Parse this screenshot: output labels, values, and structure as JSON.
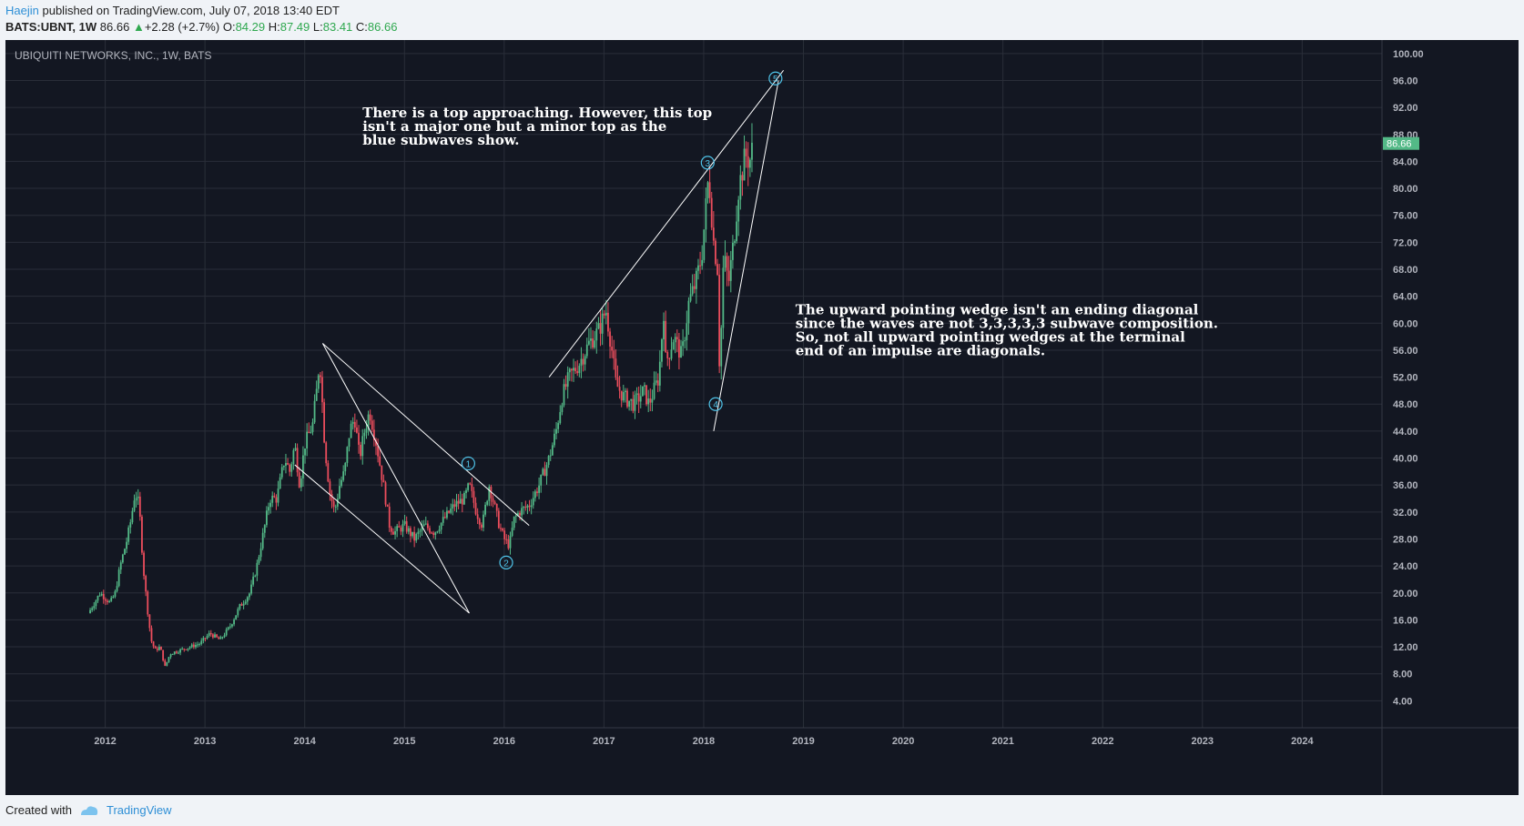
{
  "header": {
    "author": "Haejin",
    "published": "published on TradingView.com, July 07, 2018 13:40 EDT",
    "symbol": "BATS:UBNT, 1W",
    "last": "86.66",
    "change": "+2.28 (+2.7%)",
    "o_label": "O:",
    "o_value": "84.29",
    "h_label": "H:",
    "h_value": "87.49",
    "l_label": "L:",
    "l_value": "83.41",
    "c_label": "C:",
    "c_value": "86.66"
  },
  "footer": {
    "created": "Created with",
    "brand": "TradingView"
  },
  "chart_data": {
    "type": "candlestick",
    "title": "UBIQUITI NETWORKS, INC., 1W, BATS",
    "price_label": "86.66",
    "ylim": [
      0,
      102
    ],
    "yticks": [
      4,
      8,
      12,
      16,
      20,
      24,
      28,
      32,
      36,
      40,
      44,
      48,
      52,
      56,
      60,
      64,
      68,
      72,
      76,
      80,
      84,
      88,
      92,
      96,
      100
    ],
    "xlim": [
      2011.0,
      2024.8
    ],
    "xticks": [
      2012,
      2013,
      2014,
      2015,
      2016,
      2017,
      2018,
      2019,
      2020,
      2021,
      2022,
      2023,
      2024
    ],
    "colors": {
      "bg": "#131722",
      "up": "#53b987",
      "down": "#eb4d5c",
      "grid": "#2a2e39",
      "text": "#b2b5be",
      "wave": "#4fc3e8",
      "line": "#ffffff",
      "price_tag": "#53b987"
    },
    "price_path": [
      [
        2011.83,
        17
      ],
      [
        2011.95,
        20
      ],
      [
        2012.05,
        18.5
      ],
      [
        2012.1,
        20
      ],
      [
        2012.15,
        24
      ],
      [
        2012.22,
        28
      ],
      [
        2012.26,
        31
      ],
      [
        2012.3,
        35
      ],
      [
        2012.34,
        33
      ],
      [
        2012.38,
        24
      ],
      [
        2012.42,
        18
      ],
      [
        2012.46,
        13
      ],
      [
        2012.5,
        11.5
      ],
      [
        2012.55,
        12
      ],
      [
        2012.6,
        9
      ],
      [
        2012.65,
        11
      ],
      [
        2012.75,
        11.5
      ],
      [
        2012.85,
        12
      ],
      [
        2012.95,
        12.5
      ],
      [
        2013.05,
        14
      ],
      [
        2013.15,
        13
      ],
      [
        2013.25,
        15
      ],
      [
        2013.35,
        18
      ],
      [
        2013.45,
        20
      ],
      [
        2013.52,
        24
      ],
      [
        2013.6,
        30
      ],
      [
        2013.65,
        34
      ],
      [
        2013.72,
        34
      ],
      [
        2013.8,
        40
      ],
      [
        2013.85,
        38
      ],
      [
        2013.9,
        42
      ],
      [
        2013.95,
        36
      ],
      [
        2014.0,
        42
      ],
      [
        2014.08,
        45
      ],
      [
        2014.12,
        50
      ],
      [
        2014.15,
        55
      ],
      [
        2014.2,
        42
      ],
      [
        2014.25,
        35
      ],
      [
        2014.3,
        32
      ],
      [
        2014.35,
        36
      ],
      [
        2014.4,
        38
      ],
      [
        2014.45,
        44
      ],
      [
        2014.5,
        46
      ],
      [
        2014.55,
        40
      ],
      [
        2014.6,
        44
      ],
      [
        2014.65,
        47
      ],
      [
        2014.72,
        42
      ],
      [
        2014.8,
        35
      ],
      [
        2014.85,
        30
      ],
      [
        2014.9,
        29
      ],
      [
        2015.0,
        30
      ],
      [
        2015.1,
        28
      ],
      [
        2015.2,
        30
      ],
      [
        2015.3,
        29
      ],
      [
        2015.4,
        31
      ],
      [
        2015.5,
        33
      ],
      [
        2015.6,
        34
      ],
      [
        2015.65,
        36
      ],
      [
        2015.72,
        32
      ],
      [
        2015.78,
        30
      ],
      [
        2015.85,
        36
      ],
      [
        2015.9,
        33
      ],
      [
        2015.95,
        30
      ],
      [
        2016.0,
        28
      ],
      [
        2016.05,
        27
      ],
      [
        2016.1,
        31
      ],
      [
        2016.15,
        32
      ],
      [
        2016.25,
        33
      ],
      [
        2016.35,
        36
      ],
      [
        2016.45,
        40
      ],
      [
        2016.52,
        44
      ],
      [
        2016.58,
        49
      ],
      [
        2016.65,
        52
      ],
      [
        2016.75,
        54
      ],
      [
        2016.85,
        57
      ],
      [
        2016.95,
        59
      ],
      [
        2017.02,
        62
      ],
      [
        2017.08,
        56
      ],
      [
        2017.12,
        51
      ],
      [
        2017.2,
        49
      ],
      [
        2017.3,
        48
      ],
      [
        2017.4,
        50
      ],
      [
        2017.45,
        48
      ],
      [
        2017.55,
        52
      ],
      [
        2017.6,
        62
      ],
      [
        2017.62,
        54
      ],
      [
        2017.7,
        58
      ],
      [
        2017.78,
        55
      ],
      [
        2017.85,
        63
      ],
      [
        2017.92,
        66
      ],
      [
        2017.98,
        70
      ],
      [
        2018.05,
        82
      ],
      [
        2018.1,
        72
      ],
      [
        2018.14,
        68
      ],
      [
        2018.16,
        52
      ],
      [
        2018.2,
        70
      ],
      [
        2018.25,
        66
      ],
      [
        2018.3,
        72
      ],
      [
        2018.35,
        80
      ],
      [
        2018.42,
        85
      ],
      [
        2018.46,
        84
      ],
      [
        2018.5,
        86.66
      ]
    ],
    "channel_lines": [
      [
        [
          2014.18,
          57
        ],
        [
          2015.65,
          17
        ]
      ],
      [
        [
          2014.18,
          57
        ],
        [
          2016.25,
          30
        ]
      ],
      [
        [
          2013.9,
          39
        ],
        [
          2015.65,
          17
        ]
      ],
      [
        [
          2016.45,
          52
        ],
        [
          2018.8,
          97.5
        ]
      ],
      [
        [
          2018.1,
          44
        ],
        [
          2018.75,
          96
        ]
      ]
    ],
    "waves": [
      {
        "label": "1",
        "x": 2015.64,
        "y": 39.2
      },
      {
        "label": "2",
        "x": 2016.02,
        "y": 24.5
      },
      {
        "label": "3",
        "x": 2018.04,
        "y": 83.8
      },
      {
        "label": "4",
        "x": 2018.12,
        "y": 48
      },
      {
        "label": "5",
        "x": 2018.72,
        "y": 96.3
      }
    ],
    "annotations": [
      {
        "x": 2014.58,
        "y": 90.5,
        "lines": [
          "There is a top approaching. However, this top",
          "isn't a major one but a minor top as the",
          "blue subwaves show."
        ]
      },
      {
        "x": 2018.92,
        "y": 61.3,
        "lines": [
          "The upward pointing wedge isn't an ending diagonal",
          "since the waves are not 3,3,3,3,3 subwave composition.",
          "So, not all upward pointing wedges at the terminal",
          "end of an impulse are diagonals."
        ]
      }
    ]
  }
}
